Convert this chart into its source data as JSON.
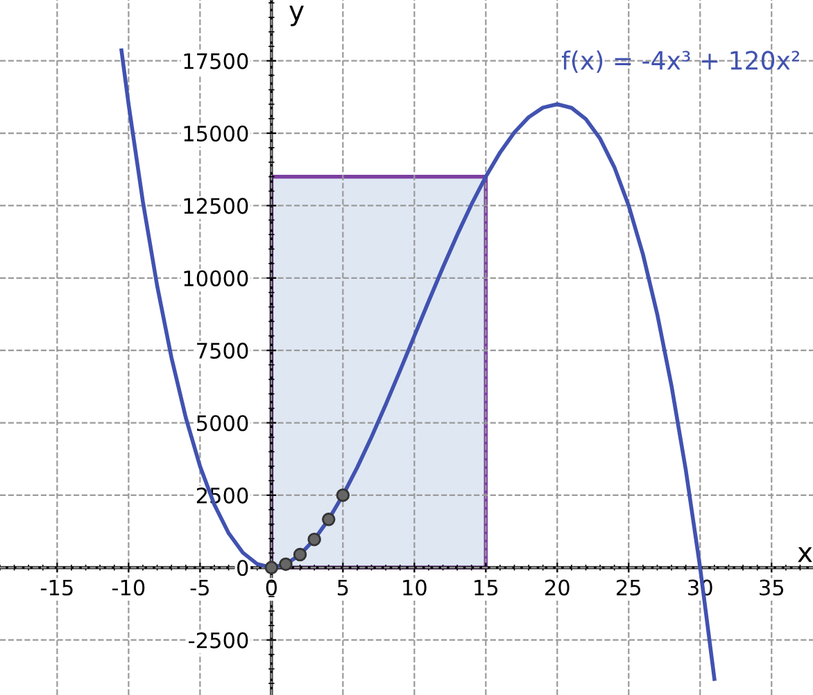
{
  "chart_data": {
    "type": "line",
    "xlabel": "x",
    "ylabel": "y",
    "xlim": [
      -19,
      37.9
    ],
    "ylim": [
      -4400,
      19600
    ],
    "xticks": [
      -15,
      -10,
      -5,
      0,
      5,
      10,
      15,
      20,
      25,
      30,
      35
    ],
    "yticks": [
      -2500,
      0,
      2500,
      5000,
      7500,
      10000,
      12500,
      15000,
      17500
    ],
    "grid": true,
    "series": [
      {
        "type": "area",
        "color": "#7b3fa0",
        "x": [
          0,
          0,
          15,
          15
        ],
        "values": [
          0,
          13500,
          13500,
          0
        ]
      },
      {
        "name": "f(x) = -4x³ + 120x²",
        "color": "#4152b0",
        "x": [
          -10.5,
          -10,
          -9,
          -8,
          -7,
          -6,
          -5,
          -4,
          -3,
          -2,
          -1,
          0,
          1,
          2,
          3,
          4,
          5,
          6,
          7,
          8,
          9,
          10,
          11,
          12,
          13,
          14,
          15,
          16,
          17,
          18,
          19,
          20,
          21,
          22,
          23,
          24,
          25,
          26,
          27,
          28,
          29,
          30,
          31
        ],
        "values": [
          17860.5,
          16000,
          12636,
          9728,
          7252,
          5184,
          3500,
          2176,
          1188,
          512,
          124,
          0,
          116,
          448,
          972,
          1664,
          2500,
          3456,
          4508,
          5632,
          6804,
          8000,
          9196,
          10368,
          11492,
          12544,
          13500,
          14336,
          15028,
          15552,
          15884,
          16000,
          15876,
          15488,
          14812,
          13824,
          12500,
          10816,
          8748,
          6272,
          3364,
          0,
          -3844
        ]
      },
      {
        "type": "scatter",
        "color": "#666666",
        "marker": "circle",
        "x": [
          0,
          1,
          2,
          3,
          4,
          5
        ],
        "values": [
          0,
          116,
          448,
          972,
          1664,
          2500
        ]
      }
    ]
  }
}
